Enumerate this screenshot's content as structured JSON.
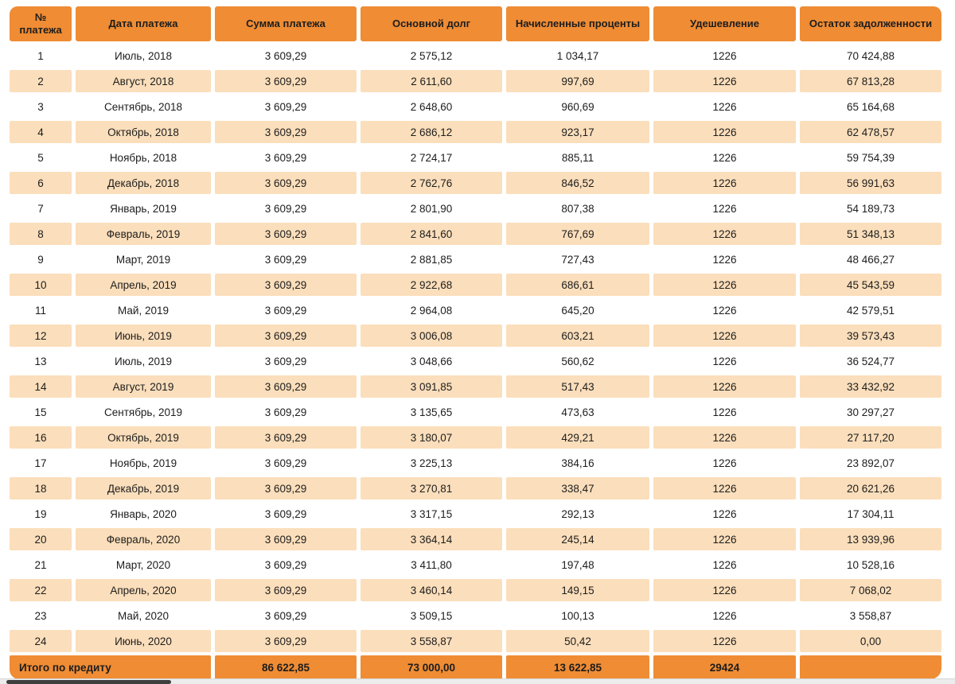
{
  "colors": {
    "header_bg": "#ef8c34",
    "stripe_bg": "#fbdebb",
    "footer_bg": "#ef8c34",
    "text": "#1d1d1d",
    "scrollbar_track": "#ececec",
    "scrollbar_thumb": "#3f3f3f",
    "page_bg": "#ffffff"
  },
  "table": {
    "columns": [
      {
        "id": "payment-number",
        "label": "№ платежа"
      },
      {
        "id": "payment-date",
        "label": "Дата платежа"
      },
      {
        "id": "payment-amount",
        "label": "Сумма платежа"
      },
      {
        "id": "principal",
        "label": "Основной долг"
      },
      {
        "id": "accrued-interest",
        "label": "Начисленные проценты"
      },
      {
        "id": "discount",
        "label": "Удешевление"
      },
      {
        "id": "remaining-balance",
        "label": "Остаток задолженности"
      }
    ],
    "rows": [
      [
        "1",
        "Июль, 2018",
        "3 609,29",
        "2 575,12",
        "1 034,17",
        "1226",
        "70 424,88"
      ],
      [
        "2",
        "Август, 2018",
        "3 609,29",
        "2 611,60",
        "997,69",
        "1226",
        "67 813,28"
      ],
      [
        "3",
        "Сентябрь, 2018",
        "3 609,29",
        "2 648,60",
        "960,69",
        "1226",
        "65 164,68"
      ],
      [
        "4",
        "Октябрь, 2018",
        "3 609,29",
        "2 686,12",
        "923,17",
        "1226",
        "62 478,57"
      ],
      [
        "5",
        "Ноябрь, 2018",
        "3 609,29",
        "2 724,17",
        "885,11",
        "1226",
        "59 754,39"
      ],
      [
        "6",
        "Декабрь, 2018",
        "3 609,29",
        "2 762,76",
        "846,52",
        "1226",
        "56 991,63"
      ],
      [
        "7",
        "Январь, 2019",
        "3 609,29",
        "2 801,90",
        "807,38",
        "1226",
        "54 189,73"
      ],
      [
        "8",
        "Февраль, 2019",
        "3 609,29",
        "2 841,60",
        "767,69",
        "1226",
        "51 348,13"
      ],
      [
        "9",
        "Март, 2019",
        "3 609,29",
        "2 881,85",
        "727,43",
        "1226",
        "48 466,27"
      ],
      [
        "10",
        "Апрель, 2019",
        "3 609,29",
        "2 922,68",
        "686,61",
        "1226",
        "45 543,59"
      ],
      [
        "11",
        "Май, 2019",
        "3 609,29",
        "2 964,08",
        "645,20",
        "1226",
        "42 579,51"
      ],
      [
        "12",
        "Июнь, 2019",
        "3 609,29",
        "3 006,08",
        "603,21",
        "1226",
        "39 573,43"
      ],
      [
        "13",
        "Июль, 2019",
        "3 609,29",
        "3 048,66",
        "560,62",
        "1226",
        "36 524,77"
      ],
      [
        "14",
        "Август, 2019",
        "3 609,29",
        "3 091,85",
        "517,43",
        "1226",
        "33 432,92"
      ],
      [
        "15",
        "Сентябрь, 2019",
        "3 609,29",
        "3 135,65",
        "473,63",
        "1226",
        "30 297,27"
      ],
      [
        "16",
        "Октябрь, 2019",
        "3 609,29",
        "3 180,07",
        "429,21",
        "1226",
        "27 117,20"
      ],
      [
        "17",
        "Ноябрь, 2019",
        "3 609,29",
        "3 225,13",
        "384,16",
        "1226",
        "23 892,07"
      ],
      [
        "18",
        "Декабрь, 2019",
        "3 609,29",
        "3 270,81",
        "338,47",
        "1226",
        "20 621,26"
      ],
      [
        "19",
        "Январь, 2020",
        "3 609,29",
        "3 317,15",
        "292,13",
        "1226",
        "17 304,11"
      ],
      [
        "20",
        "Февраль, 2020",
        "3 609,29",
        "3 364,14",
        "245,14",
        "1226",
        "13 939,96"
      ],
      [
        "21",
        "Март, 2020",
        "3 609,29",
        "3 411,80",
        "197,48",
        "1226",
        "10 528,16"
      ],
      [
        "22",
        "Апрель, 2020",
        "3 609,29",
        "3 460,14",
        "149,15",
        "1226",
        "7 068,02"
      ],
      [
        "23",
        "Май, 2020",
        "3 609,29",
        "3 509,15",
        "100,13",
        "1226",
        "3 558,87"
      ],
      [
        "24",
        "Июнь, 2020",
        "3 609,29",
        "3 558,87",
        "50,42",
        "1226",
        "0,00"
      ]
    ],
    "footer": {
      "label": "Итого по кредиту",
      "values": [
        "86 622,85",
        "73 000,00",
        "13 622,85",
        "29424",
        ""
      ]
    }
  }
}
